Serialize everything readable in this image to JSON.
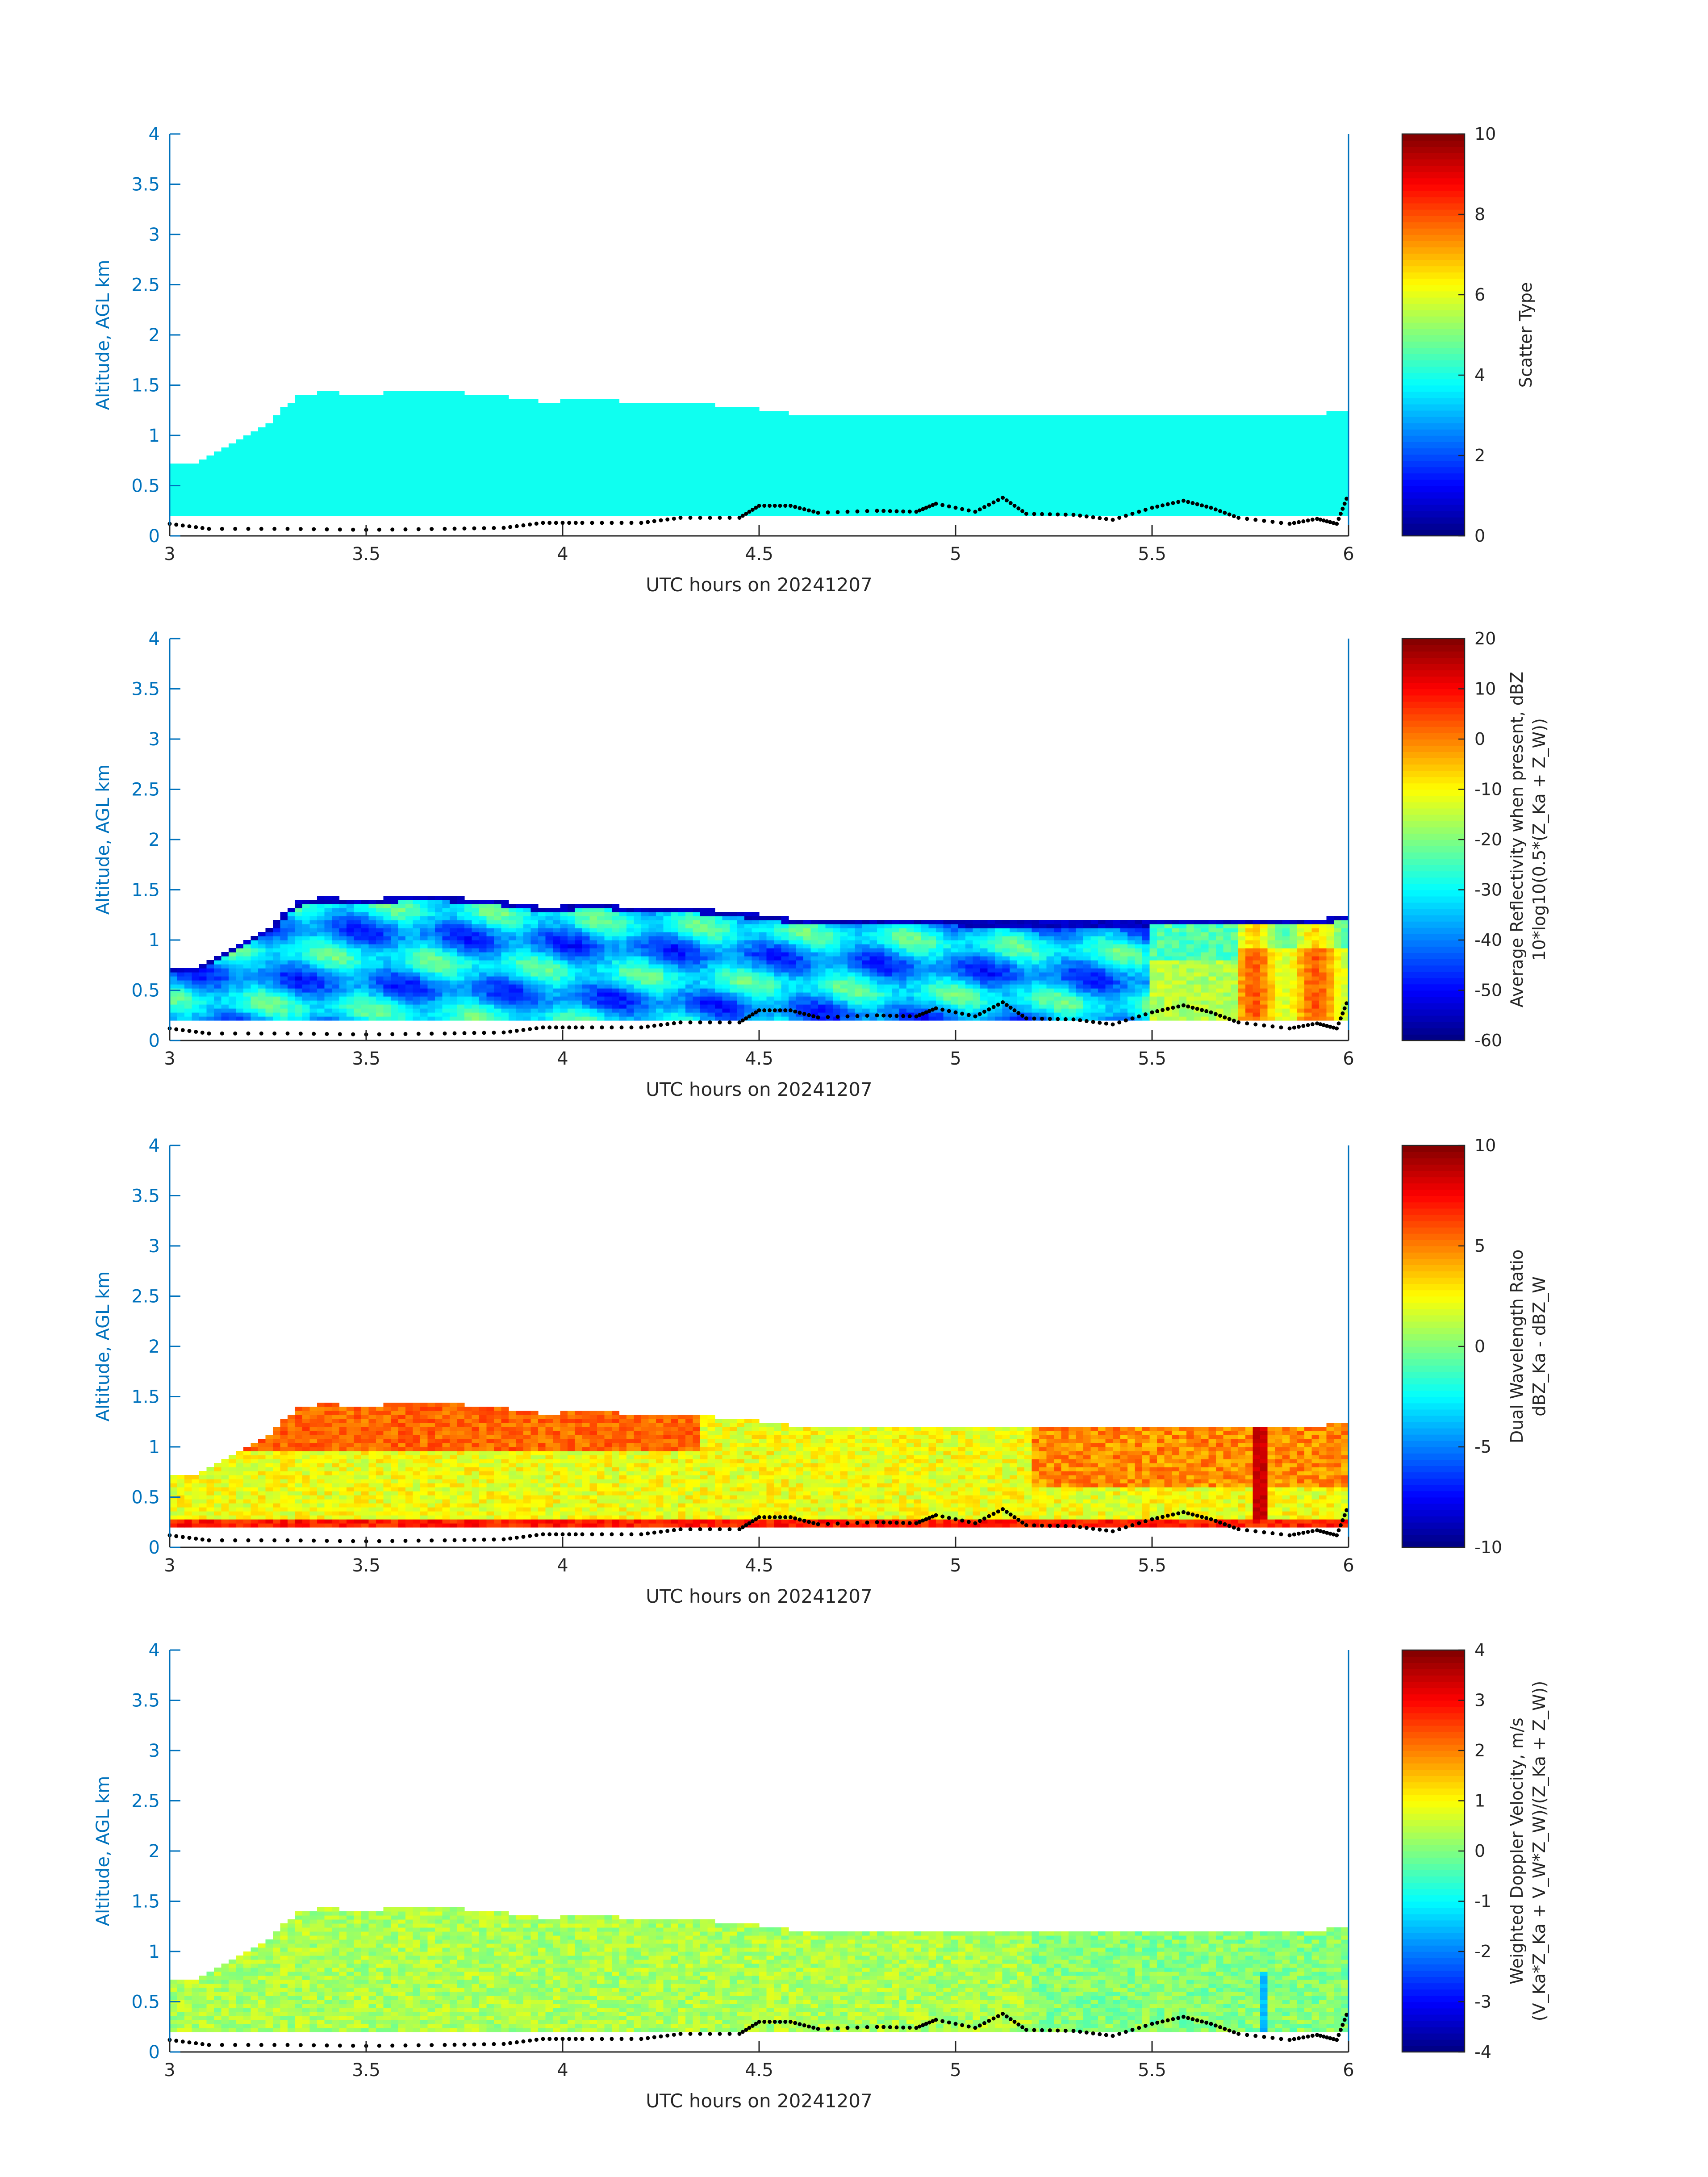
{
  "chart_data": [
    {
      "type": "heatmap",
      "xlabel": "UTC hours on 20241207",
      "ylabel": "Altitude, AGL km",
      "xlim": [
        3,
        6
      ],
      "ylim": [
        0,
        4
      ],
      "xticks": [
        "3",
        "3.5",
        "4",
        "4.5",
        "5",
        "5.5",
        "6"
      ],
      "yticks": [
        "0",
        "0.5",
        "1",
        "1.5",
        "2",
        "2.5",
        "3",
        "3.5",
        "4"
      ],
      "colorbar": {
        "label_lines": [
          "Scatter Type"
        ],
        "ticks": [
          "0",
          "2",
          "4",
          "6",
          "8",
          "10"
        ],
        "clim": [
          0,
          10
        ]
      },
      "field": "scatter_type",
      "typical_value": 3.9
    },
    {
      "type": "heatmap",
      "xlabel": "UTC hours on 20241207",
      "ylabel": "Altitude, AGL km",
      "xlim": [
        3,
        6
      ],
      "ylim": [
        0,
        4
      ],
      "xticks": [
        "3",
        "3.5",
        "4",
        "4.5",
        "5",
        "5.5",
        "6"
      ],
      "yticks": [
        "0",
        "0.5",
        "1",
        "1.5",
        "2",
        "2.5",
        "3",
        "3.5",
        "4"
      ],
      "colorbar": {
        "label_lines": [
          "Average Reflectivity when present, dBZ",
          "10*log10(0.5*(Z_Ka + Z_W))"
        ],
        "ticks": [
          "-60",
          "-50",
          "-40",
          "-30",
          "-20",
          "-10",
          "0",
          "10",
          "20"
        ],
        "clim": [
          -60,
          20
        ]
      },
      "field": "reflectivity_dBZ"
    },
    {
      "type": "heatmap",
      "xlabel": "UTC hours on 20241207",
      "ylabel": "Altitude, AGL km",
      "xlim": [
        3,
        6
      ],
      "ylim": [
        0,
        4
      ],
      "xticks": [
        "3",
        "3.5",
        "4",
        "4.5",
        "5",
        "5.5",
        "6"
      ],
      "yticks": [
        "0",
        "0.5",
        "1",
        "1.5",
        "2",
        "2.5",
        "3",
        "3.5",
        "4"
      ],
      "colorbar": {
        "label_lines": [
          "Dual Wavelength Ratio",
          "dBZ_Ka - dBZ_W"
        ],
        "ticks": [
          "-10",
          "-5",
          "0",
          "5",
          "10"
        ],
        "clim": [
          -10,
          10
        ]
      },
      "field": "dual_wavelength_ratio"
    },
    {
      "type": "heatmap",
      "xlabel": "UTC hours on 20241207",
      "ylabel": "Altitude, AGL km",
      "xlim": [
        3,
        6
      ],
      "ylim": [
        0,
        4
      ],
      "xticks": [
        "3",
        "3.5",
        "4",
        "4.5",
        "5",
        "5.5",
        "6"
      ],
      "yticks": [
        "0",
        "0.5",
        "1",
        "1.5",
        "2",
        "2.5",
        "3",
        "3.5",
        "4"
      ],
      "colorbar": {
        "label_lines": [
          "Weighted Doppler Velocity, m/s",
          "(V_Ka*Z_Ka + V_W*Z_W)/(Z_Ka + Z_W))"
        ],
        "ticks": [
          "-4",
          "-3",
          "-2",
          "-1",
          "0",
          "1",
          "2",
          "3",
          "4"
        ],
        "clim": [
          -4,
          4
        ]
      },
      "field": "doppler_velocity"
    }
  ],
  "echo": {
    "cloud_base_km": 0.19,
    "top_profile": [
      [
        3.0,
        0.72
      ],
      [
        3.07,
        0.72
      ],
      [
        3.17,
        0.95
      ],
      [
        3.2,
        1.02
      ],
      [
        3.25,
        1.1
      ],
      [
        3.32,
        1.38
      ],
      [
        3.4,
        1.43
      ],
      [
        3.5,
        1.4
      ],
      [
        3.62,
        1.45
      ],
      [
        3.83,
        1.4
      ],
      [
        3.95,
        1.33
      ],
      [
        4.1,
        1.37
      ],
      [
        4.2,
        1.31
      ],
      [
        4.35,
        1.31
      ],
      [
        4.5,
        1.26
      ],
      [
        4.6,
        1.2
      ],
      [
        5.0,
        1.19
      ],
      [
        5.5,
        1.19
      ],
      [
        5.75,
        1.22
      ],
      [
        5.85,
        1.19
      ],
      [
        6.0,
        1.24
      ]
    ]
  },
  "surface_dots": [
    [
      3.0,
      0.12
    ],
    [
      3.1,
      0.07
    ],
    [
      3.3,
      0.07
    ],
    [
      3.5,
      0.06
    ],
    [
      3.7,
      0.07
    ],
    [
      3.85,
      0.08
    ],
    [
      3.95,
      0.13
    ],
    [
      4.05,
      0.13
    ],
    [
      4.2,
      0.13
    ],
    [
      4.3,
      0.18
    ],
    [
      4.45,
      0.18
    ],
    [
      4.5,
      0.3
    ],
    [
      4.58,
      0.3
    ],
    [
      4.65,
      0.23
    ],
    [
      4.8,
      0.25
    ],
    [
      4.9,
      0.24
    ],
    [
      4.95,
      0.32
    ],
    [
      5.05,
      0.24
    ],
    [
      5.12,
      0.38
    ],
    [
      5.18,
      0.22
    ],
    [
      5.3,
      0.21
    ],
    [
      5.4,
      0.16
    ],
    [
      5.5,
      0.28
    ],
    [
      5.58,
      0.35
    ],
    [
      5.65,
      0.28
    ],
    [
      5.72,
      0.18
    ],
    [
      5.85,
      0.12
    ],
    [
      5.92,
      0.17
    ],
    [
      5.97,
      0.12
    ],
    [
      6.0,
      0.42
    ]
  ]
}
